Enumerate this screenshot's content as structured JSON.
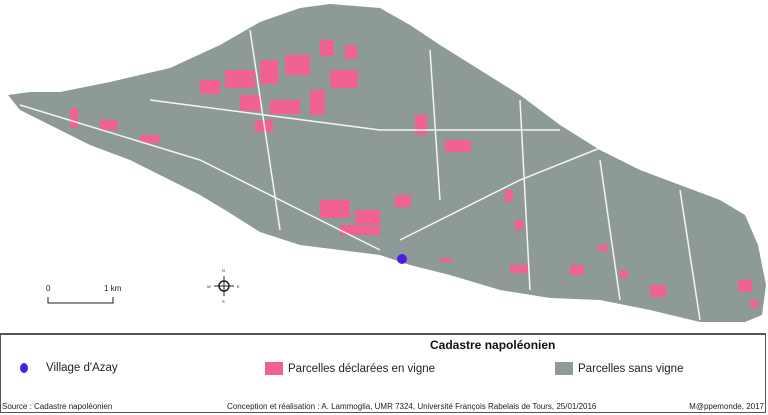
{
  "legend": {
    "title": "Cadastre napoléonien",
    "items": [
      {
        "label": "Village d'Azay",
        "color": "#4a1fe0",
        "symbol": "dot"
      },
      {
        "label": "Parcelles déclarées en vigne",
        "color": "#f06292",
        "symbol": "square"
      },
      {
        "label": "Parcelles sans vigne",
        "color": "#8e9a98",
        "symbol": "square"
      }
    ]
  },
  "scale_bar": {
    "start": "0",
    "end": "1 km"
  },
  "north_arrow": {
    "n": "N",
    "s": "S",
    "e": "E",
    "w": "W"
  },
  "footer": {
    "source": "Source :  Cadastre napoléonien",
    "credits": "Conception et réalisation : A. Lammoglia, UMR 7324, Université François Rabelais de Tours, 25/01/2016",
    "publisher": "M@ppemonde, 2017"
  }
}
